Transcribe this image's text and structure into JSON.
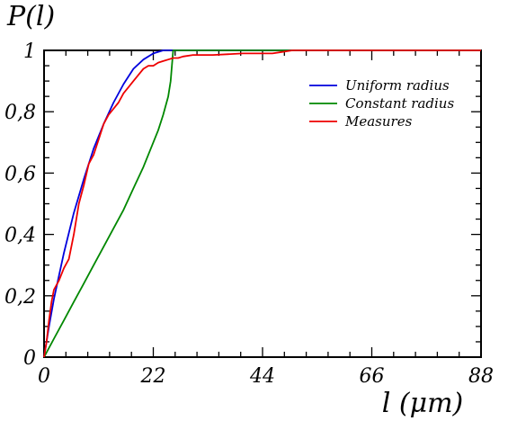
{
  "chart_data": {
    "type": "line",
    "ylabel": "P(l)",
    "xlabel": "l (μm)",
    "xlim": [
      0,
      88
    ],
    "ylim": [
      0,
      1
    ],
    "x_ticks": [
      0,
      22,
      44,
      66,
      88
    ],
    "x_tick_labels": [
      "0",
      "22",
      "44",
      "66",
      "88"
    ],
    "y_ticks": [
      0,
      0.2,
      0.4,
      0.6,
      0.8,
      1
    ],
    "y_tick_labels": [
      "0",
      "0,2",
      "0,4",
      "0,6",
      "0,8",
      "1"
    ],
    "grid": false,
    "legend_position": "top-right",
    "series": [
      {
        "name": "Uniform radius",
        "color": "#0000dd",
        "x": [
          0,
          1,
          2,
          4,
          6,
          8,
          10,
          12,
          14,
          16,
          18,
          20,
          22,
          24,
          25.5,
          88
        ],
        "y": [
          0,
          0.1,
          0.19,
          0.34,
          0.47,
          0.58,
          0.68,
          0.76,
          0.83,
          0.89,
          0.94,
          0.97,
          0.99,
          1.0,
          1.0,
          1.0
        ]
      },
      {
        "name": "Constant radius",
        "color": "#008800",
        "x": [
          0,
          2,
          4,
          6,
          8,
          10,
          12,
          14,
          16,
          18,
          20,
          22,
          23,
          24,
          25,
          25.5,
          26,
          88
        ],
        "y": [
          0,
          0.06,
          0.12,
          0.18,
          0.24,
          0.3,
          0.36,
          0.42,
          0.48,
          0.55,
          0.62,
          0.7,
          0.74,
          0.79,
          0.85,
          0.9,
          1.0,
          1.0
        ]
      },
      {
        "name": "Measures",
        "color": "#ee0000",
        "x": [
          0,
          0.5,
          1,
          1.5,
          2,
          3,
          4,
          5,
          6,
          7,
          8,
          9,
          10,
          11,
          12,
          13,
          14,
          15,
          16,
          17,
          18,
          19,
          20,
          21,
          22,
          23,
          24,
          25,
          26,
          27,
          28,
          30,
          34,
          40,
          46,
          48,
          50,
          60,
          70,
          80,
          88
        ],
        "y": [
          0,
          0.05,
          0.12,
          0.18,
          0.22,
          0.25,
          0.29,
          0.32,
          0.4,
          0.5,
          0.56,
          0.63,
          0.66,
          0.71,
          0.76,
          0.79,
          0.81,
          0.83,
          0.86,
          0.88,
          0.9,
          0.92,
          0.94,
          0.95,
          0.95,
          0.96,
          0.965,
          0.97,
          0.975,
          0.975,
          0.98,
          0.985,
          0.985,
          0.99,
          0.99,
          0.995,
          1.0,
          1.0,
          1.0,
          1.0,
          1.0
        ]
      }
    ]
  }
}
